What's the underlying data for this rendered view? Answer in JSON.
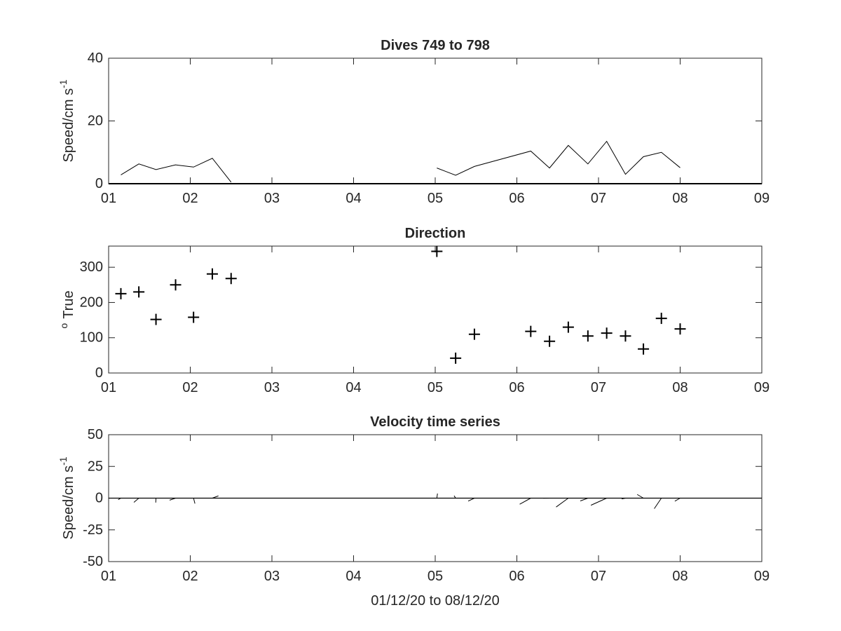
{
  "chart_data": [
    {
      "type": "line",
      "title": "Dives 749 to 798",
      "ylabel": "Speed/cm s",
      "ylabel_sup": "-1",
      "xlim": [
        1,
        9
      ],
      "ylim": [
        0,
        40
      ],
      "xticks": [
        1,
        2,
        3,
        4,
        5,
        6,
        7,
        8,
        9
      ],
      "xtick_labels": [
        "01",
        "02",
        "03",
        "04",
        "05",
        "06",
        "07",
        "08",
        "09"
      ],
      "yticks": [
        0,
        20,
        40
      ],
      "ytick_labels": [
        "0",
        "20",
        "40"
      ],
      "segments": [
        [
          [
            1.15,
            2.8
          ],
          [
            1.37,
            6.3
          ],
          [
            1.58,
            4.5
          ],
          [
            1.82,
            6.0
          ],
          [
            2.04,
            5.3
          ],
          [
            2.27,
            8.1
          ],
          [
            2.5,
            0.5
          ]
        ],
        [
          [
            5.02,
            5.0
          ],
          [
            5.25,
            2.7
          ],
          [
            5.48,
            5.5
          ],
          [
            6.17,
            10.4
          ],
          [
            6.4,
            5.0
          ],
          [
            6.63,
            12.2
          ],
          [
            6.87,
            6.3
          ],
          [
            7.1,
            13.5
          ],
          [
            7.33,
            3.0
          ],
          [
            7.55,
            8.6
          ],
          [
            7.77,
            10.0
          ],
          [
            8.0,
            5.1
          ]
        ]
      ],
      "baseline": 0,
      "grid": false
    },
    {
      "type": "scatter",
      "title": "Direction",
      "ylabel": "True",
      "ylabel_pre_sup": "o",
      "marker": "+",
      "xlim": [
        1,
        9
      ],
      "ylim": [
        0,
        360
      ],
      "xticks": [
        1,
        2,
        3,
        4,
        5,
        6,
        7,
        8,
        9
      ],
      "xtick_labels": [
        "01",
        "02",
        "03",
        "04",
        "05",
        "06",
        "07",
        "08",
        "09"
      ],
      "yticks": [
        0,
        100,
        200,
        300
      ],
      "ytick_labels": [
        "0",
        "100",
        "200",
        "300"
      ],
      "x": [
        1.15,
        1.37,
        1.58,
        1.82,
        2.04,
        2.27,
        2.5,
        5.02,
        5.25,
        5.48,
        6.17,
        6.4,
        6.63,
        6.87,
        7.1,
        7.33,
        7.55,
        7.77,
        8.0
      ],
      "y": [
        225,
        230,
        152,
        250,
        158,
        281,
        268,
        345,
        42,
        110,
        118,
        90,
        130,
        105,
        113,
        105,
        68,
        155,
        125
      ],
      "grid": false
    },
    {
      "type": "line",
      "title": "Velocity time series",
      "xlabel": "01/12/20 to 08/12/20",
      "ylabel": "Speed/cm s",
      "ylabel_sup": "-1",
      "xlim": [
        1,
        9
      ],
      "ylim": [
        -50,
        50
      ],
      "xticks": [
        1,
        2,
        3,
        4,
        5,
        6,
        7,
        8,
        9
      ],
      "xtick_labels": [
        "01",
        "02",
        "03",
        "04",
        "05",
        "06",
        "07",
        "08",
        "09"
      ],
      "yticks": [
        -50,
        -25,
        0,
        25,
        50
      ],
      "ytick_labels": [
        "-50",
        "-25",
        "0",
        "25",
        "50"
      ],
      "zero_line": true,
      "sticks": [
        {
          "x": 1.15,
          "u": -2.1,
          "v": -1.2
        },
        {
          "x": 1.37,
          "u": -3.9,
          "v": -3.3
        },
        {
          "x": 1.58,
          "u": -0.2,
          "v": -3.5
        },
        {
          "x": 1.82,
          "u": -4.7,
          "v": -1.6
        },
        {
          "x": 2.04,
          "u": 1.1,
          "v": -4.3
        },
        {
          "x": 2.27,
          "u": 4.8,
          "v": 1.8
        },
        {
          "x": 2.5,
          "u": 0.0,
          "v": 0.0
        },
        {
          "x": 5.02,
          "u": 0.5,
          "v": 3.6
        },
        {
          "x": 5.25,
          "u": -1.2,
          "v": 1.9
        },
        {
          "x": 5.48,
          "u": -4.9,
          "v": -2.3
        },
        {
          "x": 6.17,
          "u": -8.7,
          "v": -4.8
        },
        {
          "x": 6.4,
          "u": -5.0,
          "v": -0.1
        },
        {
          "x": 6.63,
          "u": -9.6,
          "v": -7.0
        },
        {
          "x": 6.87,
          "u": -6.0,
          "v": -2.2
        },
        {
          "x": 7.1,
          "u": -12.4,
          "v": -5.6
        },
        {
          "x": 7.33,
          "u": -2.9,
          "v": -0.6
        },
        {
          "x": 7.55,
          "u": -4.9,
          "v": 2.9
        },
        {
          "x": 7.77,
          "u": -5.6,
          "v": -8.3
        },
        {
          "x": 8.0,
          "u": -4.2,
          "v": -2.4
        }
      ],
      "grid": false
    }
  ]
}
